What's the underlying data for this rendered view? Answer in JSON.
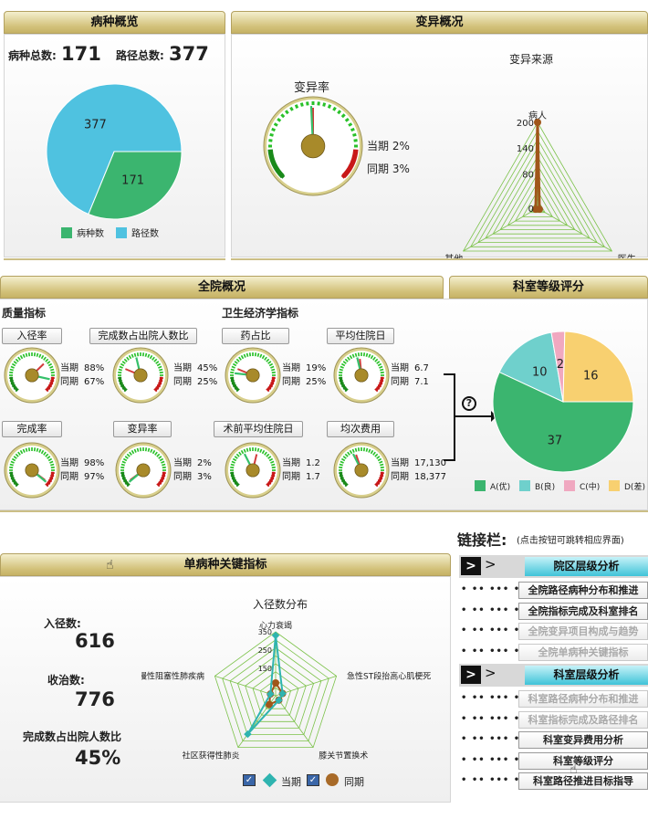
{
  "panels": {
    "bingzhong": "病种概览",
    "bianyi": "变异概况",
    "quanyuan": "全院概况",
    "keshi": "科室等级评分",
    "danbing": "单病种关键指标"
  },
  "overview": {
    "disease_total_label": "病种总数:",
    "disease_total": "171",
    "path_total_label": "路径总数:",
    "path_total": "377",
    "pie": {
      "slices": [
        {
          "name": "病种数",
          "value": 171,
          "color": "#3bb56f"
        },
        {
          "name": "路径数",
          "value": 377,
          "color": "#4fc2e0"
        }
      ]
    }
  },
  "variation": {
    "rate_title": "变异率",
    "current": "当期 2%",
    "previous": "同期 3%",
    "gauge": {
      "current": 2,
      "previous": 3
    },
    "source_title": "变异来源",
    "radar": {
      "axes": [
        "病人",
        "医生",
        "其他"
      ],
      "ticks": [
        "200",
        "140",
        "80",
        "0"
      ],
      "values": [
        200,
        5,
        5
      ]
    }
  },
  "hospital": {
    "quality_title": "质量指标",
    "econ_title": "卫生经济学指标",
    "gauges": [
      {
        "name": "入径率",
        "cur_label": "当期",
        "cur": "88%",
        "prev_label": "同期",
        "prev": "67%",
        "cur_v": 88,
        "prev_v": 67
      },
      {
        "name": "完成数占出院人数比",
        "cur_label": "当期",
        "cur": "45%",
        "prev_label": "同期",
        "prev": "25%",
        "cur_v": 45,
        "prev_v": 25
      },
      {
        "name": "药占比",
        "cur_label": "当期",
        "cur": "19%",
        "prev_label": "同期",
        "prev": "25%",
        "cur_v": 19,
        "prev_v": 25
      },
      {
        "name": "平均住院日",
        "cur_label": "当期",
        "cur": "6.7",
        "prev_label": "同期",
        "prev": "7.1",
        "cur_v": 45,
        "prev_v": 48
      },
      {
        "name": "完成率",
        "cur_label": "当期",
        "cur": "98%",
        "prev_label": "同期",
        "prev": "97%",
        "cur_v": 98,
        "prev_v": 97
      },
      {
        "name": "变异率",
        "cur_label": "当期",
        "cur": "2%",
        "prev_label": "同期",
        "prev": "3%",
        "cur_v": 2,
        "prev_v": 3
      },
      {
        "name": "术前平均住院日",
        "cur_label": "当期",
        "cur": "1.2",
        "prev_label": "同期",
        "prev": "1.7",
        "cur_v": 40,
        "prev_v": 55
      },
      {
        "name": "均次费用",
        "cur_label": "当期",
        "cur": "17,130",
        "prev_label": "同期",
        "prev": "18,377",
        "cur_v": 40,
        "prev_v": 43
      }
    ],
    "help_icon": "question-circle-icon"
  },
  "dept_score": {
    "pie": {
      "slices": [
        {
          "name": "A(优)",
          "value": 37,
          "color": "#3bb56f"
        },
        {
          "name": "B(良)",
          "value": 10,
          "color": "#6fd0cc"
        },
        {
          "name": "C(中)",
          "value": 2,
          "color": "#f0a8c0"
        },
        {
          "name": "D(差)",
          "value": 16,
          "color": "#f8d070"
        }
      ]
    }
  },
  "single": {
    "in_label": "入径数:",
    "in_value": "616",
    "adm_label": "收治数:",
    "adm_value": "776",
    "ratio_label": "完成数占出院人数比",
    "ratio_value": "45%",
    "radar_title": "入径数分布",
    "radar": {
      "axes": [
        "心力衰竭",
        "急性ST段抬高心肌梗死",
        "膝关节置换术",
        "社区获得性肺炎",
        "慢性阻塞性肺疾病"
      ],
      "ticks": [
        "350",
        "250",
        "150"
      ],
      "current": [
        330,
        40,
        30,
        260,
        30
      ],
      "previous": [
        70,
        40,
        30,
        60,
        30
      ]
    },
    "legend_current": "当期",
    "legend_previous": "同期"
  },
  "links": {
    "title": "链接栏:",
    "hint": "(点击按钮可跳转相应界面)",
    "sections": [
      {
        "title": "院区层级分析",
        "items": [
          {
            "label": "全院路径病种分布和推进",
            "enabled": true
          },
          {
            "label": "全院指标完成及科室排名",
            "enabled": true
          },
          {
            "label": "全院变异项目构成与趋势",
            "enabled": false
          },
          {
            "label": "全院单病种关键指标",
            "enabled": false
          }
        ]
      },
      {
        "title": "科室层级分析",
        "items": [
          {
            "label": "科室路径病种分布和推进",
            "enabled": false
          },
          {
            "label": "科室指标完成及路径排名",
            "enabled": false
          },
          {
            "label": "科室变异费用分析",
            "enabled": true
          },
          {
            "label": "科室等级评分",
            "enabled": true
          },
          {
            "label": "科室路径推进目标指导",
            "enabled": true
          }
        ]
      }
    ],
    "dots": "• •• ••• •••"
  }
}
